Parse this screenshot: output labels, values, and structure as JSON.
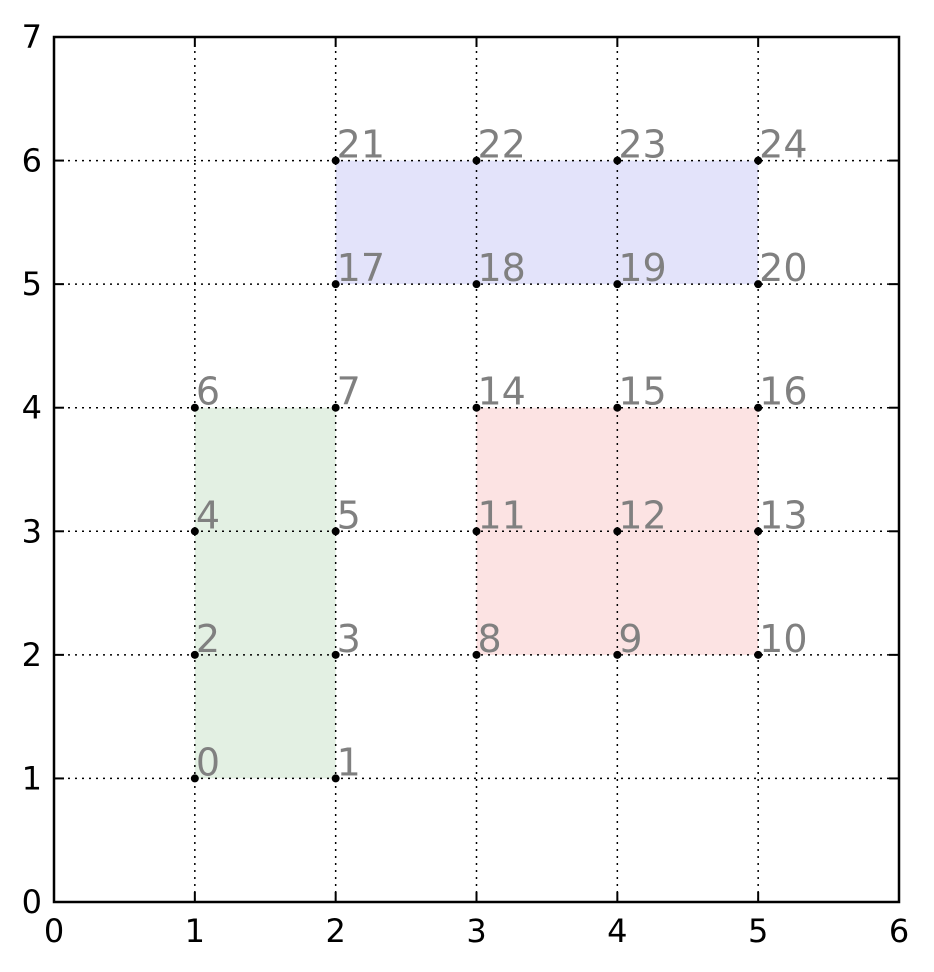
{
  "chart_data": {
    "type": "scatter",
    "title": "",
    "xlabel": "",
    "ylabel": "",
    "xlim": [
      0,
      6
    ],
    "ylim": [
      0,
      7
    ],
    "xticks": [
      "0",
      "1",
      "2",
      "3",
      "4",
      "5",
      "6"
    ],
    "yticks": [
      "0",
      "1",
      "2",
      "3",
      "4",
      "5",
      "6",
      "7"
    ],
    "grid": true,
    "grid_style": "dotted",
    "points": [
      {
        "label": "0",
        "x": 1,
        "y": 1
      },
      {
        "label": "1",
        "x": 2,
        "y": 1
      },
      {
        "label": "2",
        "x": 1,
        "y": 2
      },
      {
        "label": "3",
        "x": 2,
        "y": 2
      },
      {
        "label": "4",
        "x": 1,
        "y": 3
      },
      {
        "label": "5",
        "x": 2,
        "y": 3
      },
      {
        "label": "6",
        "x": 1,
        "y": 4
      },
      {
        "label": "7",
        "x": 2,
        "y": 4
      },
      {
        "label": "8",
        "x": 3,
        "y": 2
      },
      {
        "label": "9",
        "x": 4,
        "y": 2
      },
      {
        "label": "10",
        "x": 5,
        "y": 2
      },
      {
        "label": "11",
        "x": 3,
        "y": 3
      },
      {
        "label": "12",
        "x": 4,
        "y": 3
      },
      {
        "label": "13",
        "x": 5,
        "y": 3
      },
      {
        "label": "14",
        "x": 3,
        "y": 4
      },
      {
        "label": "15",
        "x": 4,
        "y": 4
      },
      {
        "label": "16",
        "x": 5,
        "y": 4
      },
      {
        "label": "17",
        "x": 2,
        "y": 5
      },
      {
        "label": "18",
        "x": 3,
        "y": 5
      },
      {
        "label": "19",
        "x": 4,
        "y": 5
      },
      {
        "label": "20",
        "x": 5,
        "y": 5
      },
      {
        "label": "21",
        "x": 2,
        "y": 6
      },
      {
        "label": "22",
        "x": 3,
        "y": 6
      },
      {
        "label": "23",
        "x": 4,
        "y": 6
      },
      {
        "label": "24",
        "x": 5,
        "y": 6
      }
    ],
    "regions": [
      {
        "x": [
          1,
          2
        ],
        "y": [
          1,
          4
        ],
        "color": "#e3f0e3"
      },
      {
        "x": [
          3,
          5
        ],
        "y": [
          2,
          4
        ],
        "color": "#fce3e3"
      },
      {
        "x": [
          2,
          5
        ],
        "y": [
          5,
          6
        ],
        "color": "#e3e3fa"
      }
    ],
    "colors": {
      "point": "#000000",
      "point_label": "#808080",
      "grid": "#000000",
      "axes": "#000000"
    }
  }
}
